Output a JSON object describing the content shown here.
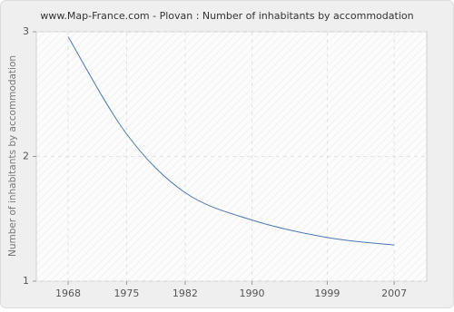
{
  "chart_data": {
    "type": "line",
    "title": "www.Map-France.com - Plovan : Number of inhabitants by accommodation",
    "y_label": "Number of inhabitants by accommodation",
    "x": [
      1968,
      1975,
      1982,
      1990,
      1999,
      2007
    ],
    "values": [
      2.96,
      2.18,
      1.71,
      1.49,
      1.35,
      1.29
    ],
    "color": "#4a78b0",
    "xlim": [
      1964.2,
      2010.9
    ],
    "xticks": [
      1968,
      1975,
      1982,
      1990,
      1999,
      2007
    ],
    "ylim": [
      1,
      3
    ],
    "yticks": [
      1,
      2,
      3
    ],
    "grid": true
  }
}
